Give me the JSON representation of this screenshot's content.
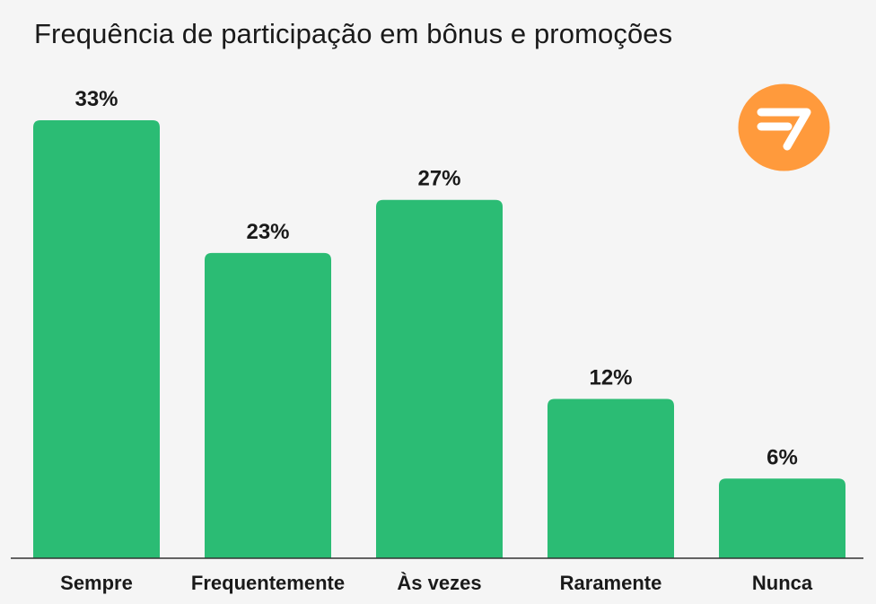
{
  "chart_data": {
    "type": "bar",
    "title": "Frequência de participação em bônus e promoções",
    "categories": [
      "Sempre",
      "Frequentemente",
      "Às vezes",
      "Raramente",
      "Nunca"
    ],
    "values": [
      33,
      23,
      27,
      12,
      6
    ],
    "value_labels": [
      "33%",
      "23%",
      "27%",
      "12%",
      "6%"
    ],
    "unit": "%",
    "ylim": [
      0,
      33
    ],
    "grid": false,
    "legend": "none",
    "colors": {
      "bar": "#2bbc74",
      "baseline": "#333333",
      "background": "#f5f5f5",
      "logo": "#ff9a3c"
    }
  },
  "brand": {
    "logo_icon": "brand-logo-icon"
  }
}
